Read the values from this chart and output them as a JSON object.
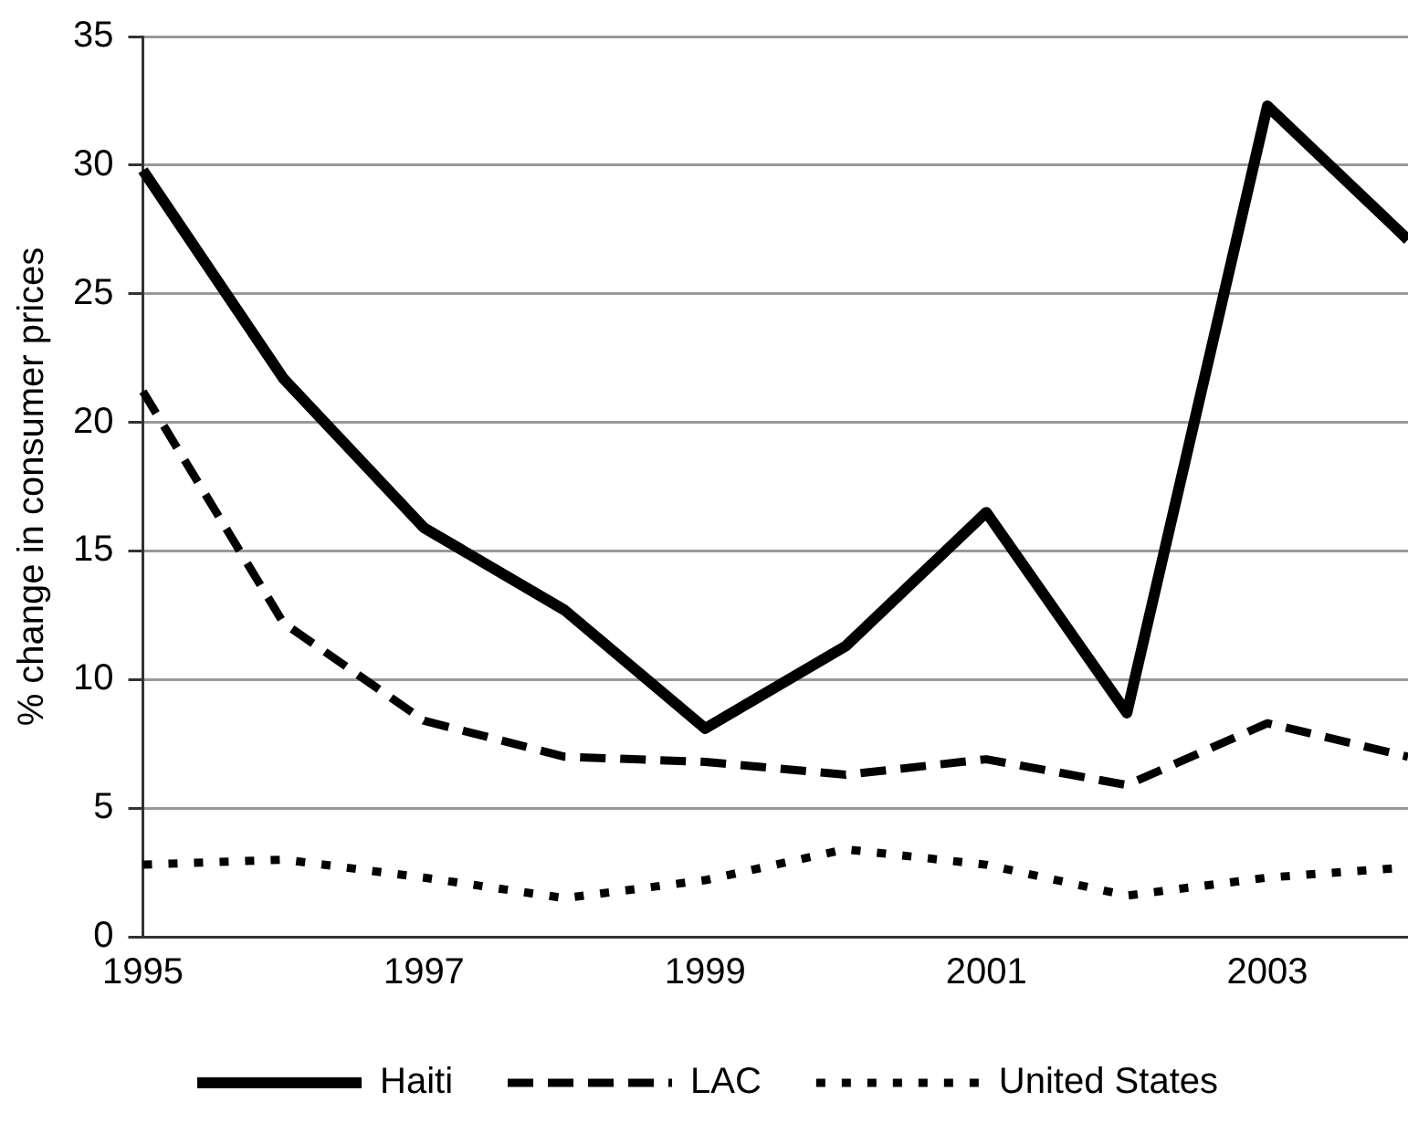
{
  "chart_data": {
    "type": "line",
    "ylabel": "% change in consumer prices",
    "x": [
      1995,
      1996,
      1997,
      1998,
      1999,
      2000,
      2001,
      2002,
      2003,
      2004
    ],
    "series": [
      {
        "name": "Haiti",
        "color": "#000000",
        "line_style": "solid",
        "values": [
          29.8,
          21.7,
          15.9,
          12.7,
          8.1,
          11.3,
          16.5,
          8.7,
          32.3,
          27.1
        ]
      },
      {
        "name": "LAC",
        "color": "#000000",
        "line_style": "dashed",
        "values": [
          21.2,
          12.2,
          8.4,
          7.0,
          6.8,
          6.3,
          6.9,
          5.9,
          8.3,
          7.0
        ]
      },
      {
        "name": "United States",
        "color": "#000000",
        "line_style": "dotted",
        "values": [
          2.8,
          3.0,
          2.3,
          1.5,
          2.2,
          3.4,
          2.8,
          1.6,
          2.3,
          2.7
        ]
      }
    ],
    "xlim": [
      1995,
      2004
    ],
    "xticks": [
      1995,
      1997,
      1999,
      2001,
      2003
    ],
    "ylim": [
      0,
      35
    ],
    "yticks": [
      0,
      5,
      10,
      15,
      20,
      25,
      30,
      35
    ],
    "grid": "y",
    "legend": "bottom",
    "marker": "none"
  }
}
